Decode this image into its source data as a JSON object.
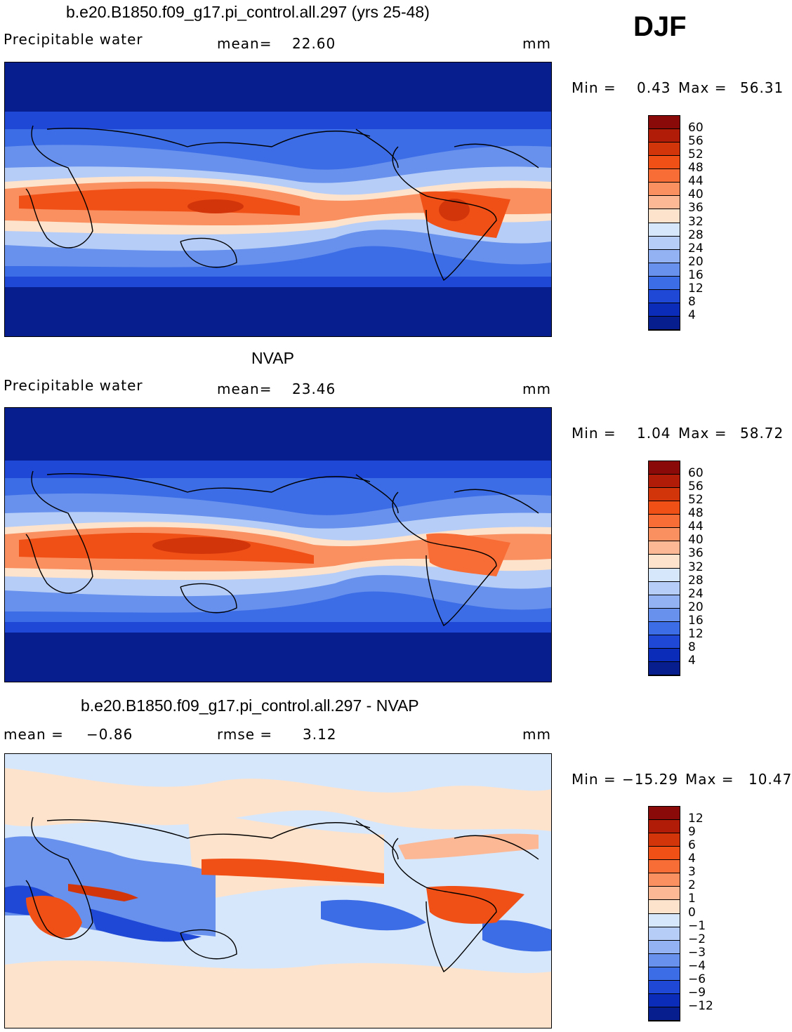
{
  "season": "DJF",
  "panels": [
    {
      "title": "b.e20.B1850.f09_g17.pi_control.all.297 (yrs 25-48)",
      "variable": "Precipitable water",
      "left_stat_label": "",
      "left_stat_value": "",
      "center_stat_label": "mean=",
      "center_stat_value": "22.60",
      "units": "mm",
      "min_label": "Min =",
      "min_value": "0.43",
      "max_label": "Max =",
      "max_value": "56.31"
    },
    {
      "title": "NVAP",
      "variable": "Precipitable water",
      "left_stat_label": "",
      "left_stat_value": "",
      "center_stat_label": "mean=",
      "center_stat_value": "23.46",
      "units": "mm",
      "min_label": "Min =",
      "min_value": "1.04",
      "max_label": "Max =",
      "max_value": "58.72"
    },
    {
      "title": "b.e20.B1850.f09_g17.pi_control.all.297 - NVAP",
      "variable": "",
      "left_stat_label": "mean =",
      "left_stat_value": "−0.86",
      "center_stat_label": "rmse =",
      "center_stat_value": "3.12",
      "units": "mm",
      "min_label": "Min =",
      "min_value": "−15.29",
      "max_label": "Max =",
      "max_value": "10.47"
    }
  ],
  "colorbars": {
    "absolute": {
      "levels": [
        "60",
        "56",
        "52",
        "48",
        "44",
        "40",
        "36",
        "32",
        "28",
        "24",
        "20",
        "16",
        "12",
        "8",
        "4"
      ],
      "colors": [
        "#8a0a0a",
        "#b01c08",
        "#d3350a",
        "#f04f16",
        "#f86c35",
        "#fa9060",
        "#fcb894",
        "#fde3cc",
        "#d7e7fb",
        "#b6cdf7",
        "#93b2f3",
        "#6791ed",
        "#3d6de6",
        "#1f48d6",
        "#0b2cb8",
        "#061e8e"
      ]
    },
    "difference": {
      "levels": [
        "12",
        "9",
        "6",
        "4",
        "3",
        "2",
        "1",
        "0",
        "−1",
        "−2",
        "−3",
        "−4",
        "−6",
        "−9",
        "−12"
      ],
      "colors": [
        "#8a0a0a",
        "#b01c08",
        "#d3350a",
        "#f04f16",
        "#f86c35",
        "#fa9060",
        "#fcb894",
        "#fde3cc",
        "#d7e7fb",
        "#b6cdf7",
        "#93b2f3",
        "#6791ed",
        "#3d6de6",
        "#1f48d6",
        "#0b2cb8",
        "#061e8e"
      ]
    }
  }
}
